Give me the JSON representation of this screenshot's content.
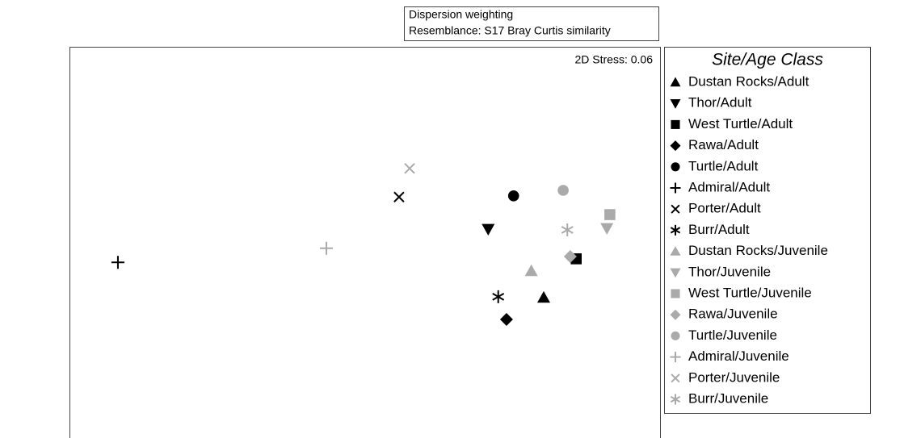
{
  "chart_data": {
    "type": "scatter",
    "header": [
      "Dispersion weighting",
      "Resemblance: S17 Bray Curtis similarity"
    ],
    "annotation": "2D Stress: 0.06",
    "legend_title": "Site/Age Class",
    "xlim": [
      0,
      100
    ],
    "ylim": [
      0,
      100
    ],
    "series": [
      {
        "name": "Dustan Rocks/Adult",
        "color": "#000000",
        "marker": "triangle-up",
        "x": [
          80.3
        ],
        "values": [
          35.9
        ]
      },
      {
        "name": "Thor/Adult",
        "color": "#000000",
        "marker": "triangle-down",
        "x": [
          70.9
        ],
        "values": [
          53.4
        ]
      },
      {
        "name": "West Turtle/Adult",
        "color": "#000000",
        "marker": "square",
        "x": [
          85.8
        ],
        "values": [
          45.8
        ]
      },
      {
        "name": "Rawa/Adult",
        "color": "#000000",
        "marker": "diamond",
        "x": [
          74.0
        ],
        "values": [
          30.3
        ]
      },
      {
        "name": "Turtle/Adult",
        "color": "#000000",
        "marker": "circle",
        "x": [
          75.2
        ],
        "values": [
          61.9
        ]
      },
      {
        "name": "Admiral/Adult",
        "color": "#000000",
        "marker": "plus",
        "x": [
          8.2
        ],
        "values": [
          44.9
        ]
      },
      {
        "name": "Porter/Adult",
        "color": "#000000",
        "marker": "cross",
        "x": [
          55.8
        ],
        "values": [
          61.6
        ]
      },
      {
        "name": "Burr/Adult",
        "color": "#000000",
        "marker": "asterisk",
        "x": [
          72.6
        ],
        "values": [
          36.1
        ]
      },
      {
        "name": "Dustan Rocks/Juvenile",
        "color": "#aaaaaa",
        "marker": "triangle-up",
        "x": [
          78.2
        ],
        "values": [
          42.7
        ]
      },
      {
        "name": "Thor/Juvenile",
        "color": "#aaaaaa",
        "marker": "triangle-down",
        "x": [
          91.0
        ],
        "values": [
          53.6
        ]
      },
      {
        "name": "West Turtle/Juvenile",
        "color": "#aaaaaa",
        "marker": "square",
        "x": [
          91.5
        ],
        "values": [
          57.1
        ]
      },
      {
        "name": "Rawa/Juvenile",
        "color": "#aaaaaa",
        "marker": "diamond",
        "x": [
          84.8
        ],
        "values": [
          46.4
        ]
      },
      {
        "name": "Turtle/Juvenile",
        "color": "#aaaaaa",
        "marker": "circle",
        "x": [
          83.6
        ],
        "values": [
          63.3
        ]
      },
      {
        "name": "Admiral/Juvenile",
        "color": "#aaaaaa",
        "marker": "plus",
        "x": [
          43.5
        ],
        "values": [
          48.5
        ]
      },
      {
        "name": "Porter/Juvenile",
        "color": "#aaaaaa",
        "marker": "cross",
        "x": [
          57.6
        ],
        "values": [
          68.9
        ]
      },
      {
        "name": "Burr/Juvenile",
        "color": "#aaaaaa",
        "marker": "asterisk",
        "x": [
          84.3
        ],
        "values": [
          53.2
        ]
      }
    ]
  }
}
